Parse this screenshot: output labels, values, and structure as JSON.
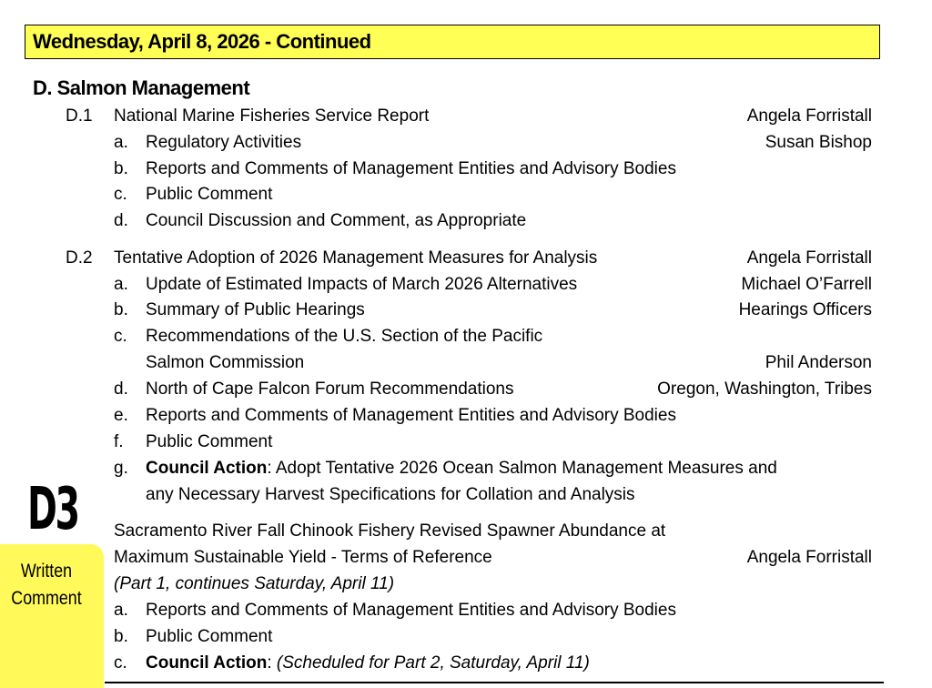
{
  "banner": {
    "title": "Wednesday, April 8, 2026 - Continued",
    "color": "#ffff55"
  },
  "section": {
    "title": "D.  Salmon Management"
  },
  "d1": {
    "num": "D.1",
    "title": "National Marine Fisheries Service Report",
    "presenter": "Angela Forristall",
    "items": [
      {
        "letter": "a.",
        "text": "Regulatory Activities",
        "presenter": "Susan Bishop"
      },
      {
        "letter": "b.",
        "text": "Reports and Comments of Management Entities and Advisory Bodies"
      },
      {
        "letter": "c.",
        "text": "Public Comment"
      },
      {
        "letter": "d.",
        "text": "Council Discussion and Comment, as Appropriate"
      }
    ]
  },
  "d2": {
    "num": "D.2",
    "title": "Tentative Adoption of 2026 Management Measures for Analysis",
    "presenter": "Angela Forristall",
    "items": [
      {
        "letter": "a.",
        "text": "Update of Estimated Impacts of March 2026 Alternatives",
        "presenter": "Michael O’Farrell"
      },
      {
        "letter": "b.",
        "text": "Summary of Public Hearings",
        "presenter": "Hearings Officers"
      },
      {
        "letter": "c.",
        "text": "Recommendations of the U.S. Section of the Pacific",
        "text2": "Salmon Commission",
        "presenter": "Phil Anderson"
      },
      {
        "letter": "d.",
        "text": "North of Cape Falcon Forum Recommendations",
        "presenter": "Oregon, Washington, Tribes"
      },
      {
        "letter": "e.",
        "text": "Reports and Comments of Management Entities and Advisory Bodies"
      },
      {
        "letter": "f.",
        "text": "Public Comment"
      },
      {
        "letter": "g.",
        "bold": "Council Action",
        "text": ": Adopt Tentative 2026 Ocean Salmon Management Measures and",
        "text2": "any Necessary Harvest Specifications for Collation and Analysis"
      }
    ]
  },
  "d3": {
    "stamp": "D3",
    "title": "Sacramento River Fall Chinook Fishery Revised Spawner Abundance at",
    "title2": "Maximum Sustainable Yield - Terms of Reference",
    "presenter": "Angela Forristall",
    "note": "(Part 1, continues Saturday, April 11)",
    "items": [
      {
        "letter": "a.",
        "text": "Reports and Comments of Management Entities and Advisory Bodies"
      },
      {
        "letter": "b.",
        "text": "Public Comment"
      },
      {
        "letter": "c.",
        "bold": "Council Action",
        "text": ": ",
        "italic": "(Scheduled for Part 2, Saturday, April 11)"
      }
    ]
  },
  "written_comment": {
    "line1": "Written",
    "line2": "Comment",
    "color": "#fff95a"
  }
}
